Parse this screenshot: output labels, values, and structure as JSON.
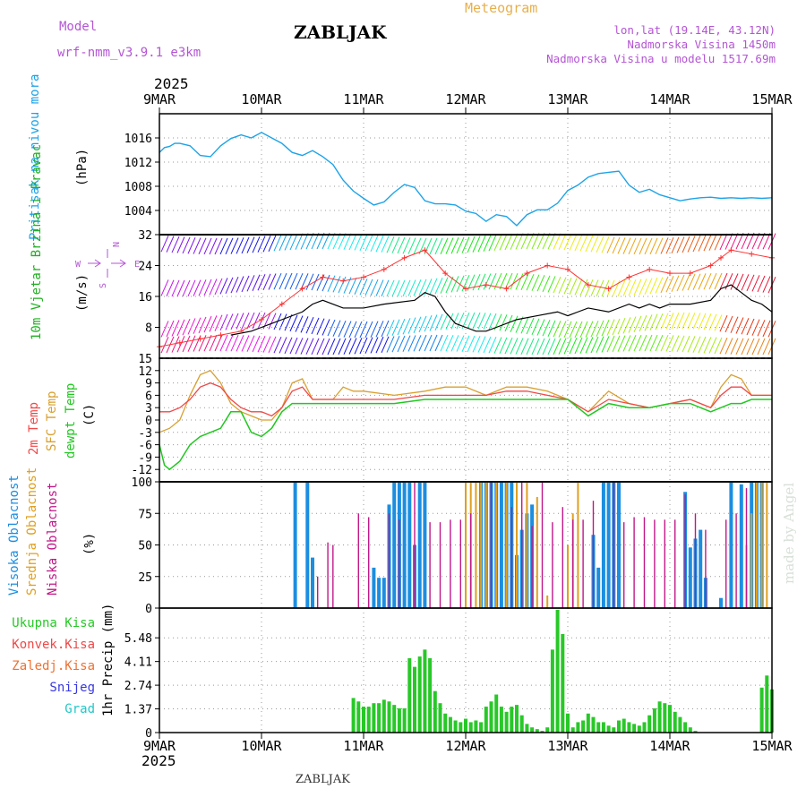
{
  "header": {
    "model_label": "Model",
    "model_name": "wrf-nmm_v3.9.1 e3km",
    "station": "ZABLJAK",
    "meteogram": "Meteogram",
    "lonlat": "lon,lat (19.14E, 43.12N)",
    "altitude": "Nadmorska Visina 1450m",
    "model_altitude": "Nadmorska Visina u modelu 1517.69m",
    "watermark": "made by Angel",
    "footer": "ZABLJAK"
  },
  "colors": {
    "pressure": "#1ca3e8",
    "wind_speed": "#000000",
    "gust": "#ff3030",
    "t2m": "#f04848",
    "tsfc": "#d8a030",
    "dewpt": "#20c820",
    "high_cloud": "#1c8ee0",
    "mid_cloud": "#e0a020",
    "low_cloud": "#c01888",
    "precip": "#28c828",
    "label_purple": "#b455d4",
    "label_orange": "#e8b04c"
  },
  "chart_data": [
    {
      "id": "pressure",
      "type": "line",
      "title": "Pritisak na nivou mora",
      "ylabel": "(hPa)",
      "year_label": "2025",
      "x_ticks": [
        "9MAR",
        "10MAR",
        "11MAR",
        "12MAR",
        "13MAR",
        "14MAR",
        "15MAR"
      ],
      "ylim": [
        1000,
        1020
      ],
      "y_ticks": [
        "1004",
        "1008",
        "1012",
        "1016"
      ],
      "series": [
        {
          "name": "MSLP",
          "x": [
            0,
            0.05,
            0.1,
            0.15,
            0.2,
            0.3,
            0.4,
            0.5,
            0.6,
            0.7,
            0.8,
            0.9,
            1.0,
            1.1,
            1.2,
            1.3,
            1.4,
            1.5,
            1.6,
            1.7,
            1.8,
            1.9,
            2.0,
            2.1,
            2.2,
            2.3,
            2.4,
            2.5,
            2.6,
            2.7,
            2.8,
            2.9,
            3.0,
            3.1,
            3.2,
            3.3,
            3.4,
            3.5,
            3.6,
            3.7,
            3.8,
            3.9,
            4.0,
            4.1,
            4.2,
            4.3,
            4.4,
            4.5,
            4.6,
            4.7,
            4.8,
            4.9,
            5.0,
            5.1,
            5.2,
            5.3,
            5.4,
            5.5,
            5.6,
            5.7,
            5.8,
            5.9,
            6.0
          ],
          "values": [
            1013.6,
            1014.4,
            1014.6,
            1015.1,
            1015.1,
            1014.7,
            1013.1,
            1012.9,
            1014.7,
            1015.9,
            1016.5,
            1016.0,
            1016.9,
            1016.0,
            1015.1,
            1013.6,
            1013.1,
            1013.9,
            1012.9,
            1011.6,
            1009.0,
            1007.2,
            1006.0,
            1004.9,
            1005.4,
            1007.0,
            1008.3,
            1007.8,
            1005.6,
            1005.1,
            1005.1,
            1004.9,
            1003.9,
            1003.5,
            1002.2,
            1003.3,
            1003.0,
            1001.5,
            1003.3,
            1004.1,
            1004.1,
            1005.2,
            1007.3,
            1008.2,
            1009.5,
            1010.1,
            1010.3,
            1010.5,
            1008.2,
            1007.0,
            1007.5,
            1006.6,
            1006.1,
            1005.6,
            1005.9,
            1006.1,
            1006.2,
            1006.0,
            1006.1,
            1006.0,
            1006.1,
            1006.0,
            1006.1
          ]
        }
      ]
    },
    {
      "id": "wind",
      "type": "line",
      "title": "10m Vjetar Brzina i Pravac",
      "ylabel": "(m/s)",
      "compass_n": "N",
      "compass_w": "W",
      "compass_e": "E",
      "compass_s": "S",
      "ylim": [
        0,
        32
      ],
      "y_ticks": [
        "8",
        "16",
        "24",
        "32"
      ],
      "gust_label": "15",
      "series": [
        {
          "name": "speed",
          "x": [
            0.7,
            0.9,
            1.0,
            1.1,
            1.2,
            1.4,
            1.5,
            1.6,
            1.8,
            2.0,
            2.2,
            2.5,
            2.6,
            2.7,
            2.8,
            2.9,
            3.0,
            3.1,
            3.2,
            3.3,
            3.5,
            3.7,
            3.9,
            4.0,
            4.1,
            4.2,
            4.4,
            4.6,
            4.7,
            4.8,
            4.9,
            5.0,
            5.2,
            5.4,
            5.5,
            5.6,
            5.7,
            5.8,
            5.9,
            6.0
          ],
          "values": [
            6,
            7,
            8,
            9,
            10,
            12,
            14,
            15,
            13,
            13,
            14,
            15,
            17,
            16,
            12,
            9,
            8,
            7,
            7,
            8,
            10,
            11,
            12,
            11,
            12,
            13,
            12,
            14,
            13,
            14,
            13,
            14,
            14,
            15,
            18,
            19,
            17,
            15,
            14,
            12
          ]
        },
        {
          "name": "gust",
          "x": [
            0,
            0.2,
            0.4,
            0.6,
            0.8,
            1.0,
            1.2,
            1.4,
            1.6,
            1.8,
            2.0,
            2.2,
            2.4,
            2.6,
            2.8,
            3.0,
            3.2,
            3.4,
            3.6,
            3.8,
            4.0,
            4.2,
            4.4,
            4.6,
            4.8,
            5.0,
            5.2,
            5.4,
            5.5,
            5.6,
            5.8,
            6.0
          ],
          "values": [
            3,
            4,
            5,
            6,
            7,
            10,
            14,
            18,
            21,
            20,
            21,
            23,
            26,
            28,
            22,
            18,
            19,
            18,
            22,
            24,
            23,
            19,
            18,
            21,
            23,
            22,
            22,
            24,
            26,
            28,
            27,
            26
          ]
        }
      ]
    },
    {
      "id": "temperature",
      "type": "line",
      "title": "2m Temp / SFC Temp / dewpt Temp",
      "label_2m": "2m Temp",
      "label_sfc": "SFC Temp",
      "label_dew": "dewpt Temp",
      "ylabel": "(C)",
      "ylim": [
        -15,
        15
      ],
      "y_ticks": [
        "-12",
        "-9",
        "-6",
        "-3",
        "0",
        "3",
        "6",
        "9",
        "12"
      ],
      "series": [
        {
          "name": "2m Temp",
          "x": [
            0,
            0.1,
            0.2,
            0.3,
            0.4,
            0.5,
            0.6,
            0.7,
            0.8,
            0.9,
            1.0,
            1.1,
            1.2,
            1.3,
            1.4,
            1.5,
            1.6,
            1.7,
            1.8,
            1.9,
            2.0,
            2.3,
            2.6,
            2.8,
            3.0,
            3.2,
            3.4,
            3.6,
            3.8,
            4.0,
            4.2,
            4.4,
            4.6,
            4.8,
            5.0,
            5.2,
            5.4,
            5.5,
            5.6,
            5.7,
            5.8,
            5.9,
            6.0
          ],
          "values": [
            2,
            2,
            3,
            5,
            8,
            9,
            8,
            5,
            3,
            2,
            2,
            1,
            3,
            7,
            8,
            5,
            5,
            5,
            5,
            5,
            5,
            5,
            6,
            6,
            6,
            6,
            7,
            7,
            6,
            5,
            2,
            5,
            4,
            3,
            4,
            5,
            3,
            6,
            8,
            8,
            6,
            6,
            6
          ]
        },
        {
          "name": "SFC Temp",
          "x": [
            0,
            0.1,
            0.2,
            0.3,
            0.4,
            0.5,
            0.6,
            0.7,
            0.8,
            0.9,
            1.0,
            1.1,
            1.2,
            1.3,
            1.4,
            1.5,
            1.6,
            1.7,
            1.8,
            1.9,
            2.0,
            2.3,
            2.6,
            2.8,
            3.0,
            3.2,
            3.4,
            3.6,
            3.8,
            4.0,
            4.2,
            4.4,
            4.6,
            4.8,
            5.0,
            5.2,
            5.4,
            5.5,
            5.6,
            5.7,
            5.8,
            5.9,
            6.0
          ],
          "values": [
            -3,
            -2,
            0,
            6,
            11,
            12,
            9,
            4,
            2,
            1,
            0,
            0,
            3,
            9,
            10,
            5,
            5,
            5,
            8,
            7,
            7,
            6,
            7,
            8,
            8,
            6,
            8,
            8,
            7,
            5,
            2,
            7,
            4,
            3,
            4,
            5,
            3,
            8,
            11,
            10,
            6,
            6,
            6
          ]
        },
        {
          "name": "dewpt Temp",
          "x": [
            0,
            0.05,
            0.1,
            0.2,
            0.3,
            0.4,
            0.5,
            0.6,
            0.7,
            0.8,
            0.9,
            1.0,
            1.1,
            1.2,
            1.3,
            1.4,
            1.5,
            1.6,
            1.8,
            2.0,
            2.3,
            2.6,
            2.8,
            3.0,
            3.2,
            3.4,
            3.6,
            3.8,
            4.0,
            4.2,
            4.4,
            4.6,
            4.8,
            5.0,
            5.2,
            5.4,
            5.5,
            5.6,
            5.7,
            5.8,
            5.9,
            6.0
          ],
          "values": [
            -6,
            -11,
            -12,
            -10,
            -6,
            -4,
            -3,
            -2,
            2,
            2,
            -3,
            -4,
            -2,
            2,
            4,
            4,
            4,
            4,
            4,
            4,
            4,
            5,
            5,
            5,
            5,
            5,
            5,
            5,
            5,
            1,
            4,
            3,
            3,
            4,
            4,
            2,
            3,
            4,
            4,
            5,
            5,
            5
          ]
        }
      ]
    },
    {
      "id": "clouds",
      "type": "bar",
      "title_high": "Visoka Oblacnost",
      "title_mid": "Srednja Oblacnost",
      "title_low": "Niska Oblacnost",
      "ylabel": "(%)",
      "ylim": [
        0,
        100
      ],
      "y_ticks": [
        "0",
        "25",
        "50",
        "75",
        "100"
      ],
      "series": [
        {
          "name": "Visoka Oblacnost",
          "x": [
            1.33,
            1.45,
            1.5,
            2.1,
            2.15,
            2.2,
            2.25,
            2.3,
            2.35,
            2.4,
            2.45,
            2.5,
            2.55,
            2.6,
            3.15,
            3.2,
            3.25,
            3.3,
            3.35,
            3.4,
            3.45,
            3.5,
            3.55,
            3.6,
            3.65,
            4.25,
            4.3,
            4.35,
            4.4,
            4.45,
            4.5,
            5.15,
            5.2,
            5.25,
            5.3,
            5.35,
            5.5,
            5.6,
            5.7,
            5.8,
            5.85,
            5.9
          ],
          "values": [
            100,
            100,
            40,
            32,
            24,
            24,
            82,
            100,
            100,
            100,
            100,
            50,
            100,
            100,
            100,
            100,
            100,
            100,
            100,
            100,
            100,
            42,
            62,
            75,
            82,
            58,
            32,
            100,
            100,
            100,
            100,
            92,
            48,
            55,
            62,
            24,
            8,
            100,
            98,
            100,
            100,
            100
          ]
        },
        {
          "name": "Srednja Oblacnost",
          "x": [
            3.0,
            3.05,
            3.1,
            3.15,
            3.2,
            3.3,
            3.4,
            3.5,
            3.6,
            3.7,
            3.8,
            4.0,
            4.05,
            4.1,
            5.75,
            5.8,
            5.85,
            5.9,
            5.95
          ],
          "values": [
            100,
            100,
            100,
            100,
            100,
            100,
            100,
            100,
            100,
            88,
            10,
            50,
            75,
            100,
            50,
            75,
            100,
            100,
            100
          ]
        },
        {
          "name": "Niska Oblacnost",
          "x": [
            1.55,
            1.65,
            1.7,
            1.95,
            2.05,
            2.25,
            2.35,
            2.5,
            2.65,
            2.75,
            2.85,
            2.95,
            3.05,
            3.25,
            3.45,
            3.55,
            3.65,
            3.75,
            3.85,
            3.95,
            4.05,
            4.15,
            4.25,
            4.45,
            4.55,
            4.65,
            4.75,
            4.85,
            4.95,
            5.05,
            5.15,
            5.25,
            5.35,
            5.55,
            5.65,
            5.75
          ],
          "values": [
            25,
            52,
            50,
            75,
            72,
            75,
            70,
            100,
            68,
            68,
            70,
            70,
            75,
            100,
            80,
            100,
            65,
            100,
            68,
            80,
            70,
            70,
            85,
            100,
            68,
            72,
            72,
            70,
            70,
            70,
            90,
            75,
            62,
            70,
            75,
            95
          ]
        }
      ]
    },
    {
      "id": "precip",
      "type": "bar",
      "legend": [
        "Ukupna Kisa",
        "Konvek.Kisa",
        "Zaledj.Kisa",
        "Snijeg",
        "Grad"
      ],
      "ylabel": "1hr Precip (mm)",
      "ylim": [
        0,
        7.2
      ],
      "y_ticks": [
        "0",
        "1.37",
        "2.74",
        "4.11",
        "5.48"
      ],
      "x_ticks": [
        "9MAR",
        "10MAR",
        "11MAR",
        "12MAR",
        "13MAR",
        "14MAR",
        "15MAR"
      ],
      "year_label": "2025",
      "series": [
        {
          "name": "Ukupna Kisa",
          "x": [
            1.9,
            1.95,
            2.0,
            2.05,
            2.1,
            2.15,
            2.2,
            2.25,
            2.3,
            2.35,
            2.4,
            2.45,
            2.5,
            2.55,
            2.6,
            2.65,
            2.7,
            2.75,
            2.8,
            2.85,
            2.9,
            2.95,
            3.0,
            3.05,
            3.1,
            3.15,
            3.2,
            3.25,
            3.3,
            3.35,
            3.4,
            3.45,
            3.5,
            3.55,
            3.6,
            3.65,
            3.7,
            3.75,
            3.8,
            3.85,
            3.9,
            3.95,
            4.0,
            4.05,
            4.1,
            4.15,
            4.2,
            4.25,
            4.3,
            4.35,
            4.4,
            4.45,
            4.5,
            4.55,
            4.6,
            4.65,
            4.7,
            4.75,
            4.8,
            4.85,
            4.9,
            4.95,
            5.0,
            5.05,
            5.1,
            5.15,
            5.2,
            5.25,
            5.3,
            5.35,
            5.4,
            5.45,
            5.5,
            5.55,
            5.6,
            5.65,
            5.7,
            5.75,
            5.8,
            5.85,
            5.9,
            5.95,
            6.0
          ],
          "values": [
            2.0,
            1.8,
            1.5,
            1.5,
            1.7,
            1.7,
            1.9,
            1.8,
            1.6,
            1.4,
            1.4,
            4.3,
            3.8,
            4.4,
            4.8,
            4.3,
            2.4,
            1.7,
            1.1,
            0.9,
            0.7,
            0.6,
            0.8,
            0.6,
            0.7,
            0.6,
            1.5,
            1.8,
            2.2,
            1.5,
            1.2,
            1.5,
            1.6,
            1.0,
            0.5,
            0.3,
            0.2,
            0.1,
            0.3,
            4.8,
            7.1,
            5.7,
            1.1,
            0.3,
            0.6,
            0.7,
            1.1,
            0.9,
            0.6,
            0.6,
            0.4,
            0.3,
            0.7,
            0.8,
            0.6,
            0.5,
            0.4,
            0.6,
            1.0,
            1.4,
            1.8,
            1.7,
            1.6,
            1.2,
            0.9,
            0.6,
            0.3,
            0.1,
            0,
            0,
            0,
            0,
            0,
            0,
            0,
            0,
            0,
            0,
            0,
            0,
            2.6,
            3.3,
            2.5
          ]
        }
      ]
    }
  ]
}
